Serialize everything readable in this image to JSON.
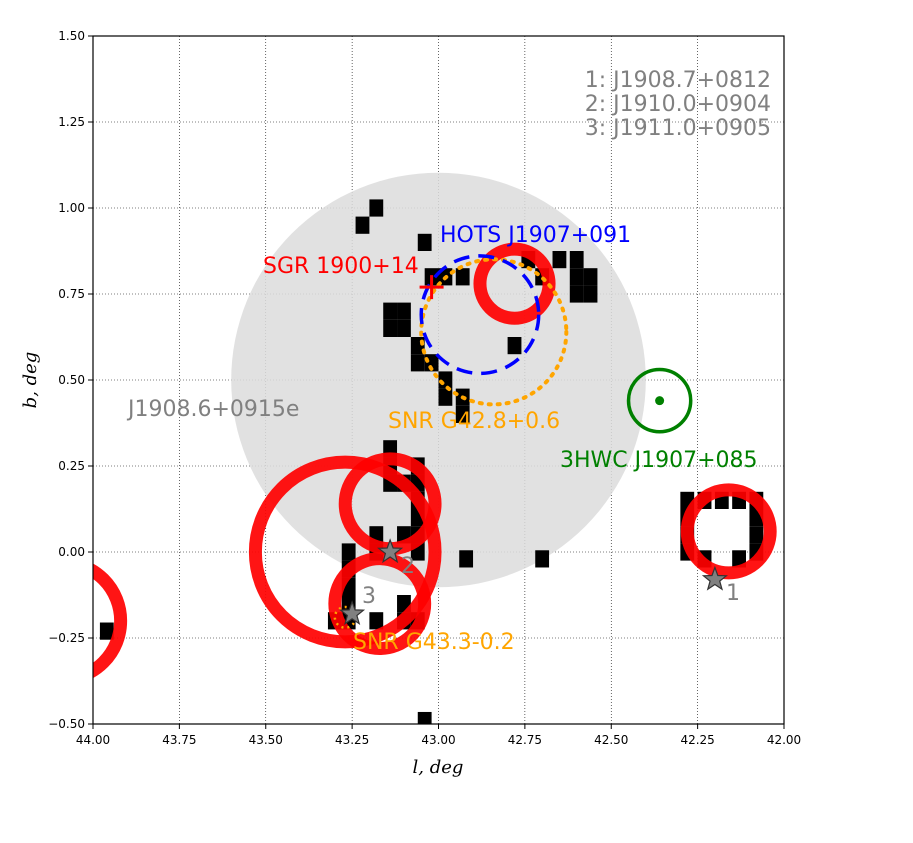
{
  "chart_data": {
    "type": "scatter",
    "xlabel": "l, deg",
    "ylabel": "b, deg",
    "xlim": [
      44.0,
      42.0
    ],
    "ylim": [
      -0.5,
      1.5
    ],
    "x_ticks": [
      44.0,
      43.75,
      43.5,
      43.25,
      43.0,
      42.75,
      42.5,
      42.25,
      42.0
    ],
    "x_tick_labels": [
      "44.00",
      "43.75",
      "43.50",
      "43.25",
      "43.00",
      "42.75",
      "42.50",
      "42.25",
      "42.00"
    ],
    "y_ticks": [
      -0.5,
      -0.25,
      0.0,
      0.25,
      0.5,
      0.75,
      1.0,
      1.25,
      1.5
    ],
    "y_tick_labels": [
      "−0.50",
      "−0.25",
      "0.00",
      "0.25",
      "0.50",
      "0.75",
      "1.00",
      "1.25",
      "1.50"
    ],
    "grid": true,
    "colors": {
      "red": "#ff0000",
      "blue": "#0000ff",
      "orange": "#ffa500",
      "green": "#008000",
      "gray": "#808080",
      "extended": "#dcdcdc"
    },
    "key_lines": [
      "1: J1908.7+0812",
      "2: J1910.0+0904",
      "3: J1911.0+0905"
    ],
    "extended_source": {
      "label": "J1908.6+0915e",
      "l": 43.0,
      "b": 0.5,
      "r": 0.6
    },
    "hots": {
      "label": "HOTS J1907+091",
      "l": 42.88,
      "b": 0.69,
      "r": 0.17
    },
    "snr_g42": {
      "label": "SNR G42.8+0.6",
      "l": 42.84,
      "b": 0.64,
      "r": 0.21
    },
    "snr_g43": {
      "label": "SNR G43.3-0.2",
      "l": 43.27,
      "b": -0.19,
      "r": 0.03
    },
    "sgr": {
      "label": "SGR 1900+14",
      "l": 43.02,
      "b": 0.77
    },
    "hawc": {
      "label": "3HWC J1907+085",
      "l": 42.36,
      "b": 0.44,
      "r": 0.09
    },
    "stars": [
      {
        "label": "1",
        "l": 42.2,
        "b": -0.08
      },
      {
        "label": "2",
        "l": 43.14,
        "b": 0.0
      },
      {
        "label": "3",
        "l": 43.25,
        "b": -0.18
      }
    ],
    "red_circles": [
      {
        "l": 42.78,
        "b": 0.78,
        "r": 0.1
      },
      {
        "l": 43.27,
        "b": 0.0,
        "r": 0.26
      },
      {
        "l": 43.14,
        "b": 0.14,
        "r": 0.13
      },
      {
        "l": 43.17,
        "b": -0.15,
        "r": 0.13
      },
      {
        "l": 42.16,
        "b": 0.06,
        "r": 0.12
      },
      {
        "l": 44.09,
        "b": -0.2,
        "r": 0.17
      }
    ],
    "pixels": [
      [
        43.18,
        1.0
      ],
      [
        43.22,
        0.95
      ],
      [
        43.04,
        0.9
      ],
      [
        42.98,
        0.8
      ],
      [
        43.02,
        0.8
      ],
      [
        42.93,
        0.8
      ],
      [
        42.74,
        0.85
      ],
      [
        42.6,
        0.85
      ],
      [
        42.65,
        0.85
      ],
      [
        42.6,
        0.8
      ],
      [
        42.56,
        0.8
      ],
      [
        42.56,
        0.75
      ],
      [
        42.6,
        0.75
      ],
      [
        42.7,
        0.8
      ],
      [
        43.14,
        0.7
      ],
      [
        43.1,
        0.7
      ],
      [
        43.14,
        0.65
      ],
      [
        43.1,
        0.65
      ],
      [
        43.06,
        0.6
      ],
      [
        43.06,
        0.55
      ],
      [
        43.02,
        0.55
      ],
      [
        42.98,
        0.5
      ],
      [
        42.98,
        0.45
      ],
      [
        42.93,
        0.45
      ],
      [
        42.93,
        0.4
      ],
      [
        42.78,
        0.6
      ],
      [
        43.14,
        0.3
      ],
      [
        43.14,
        0.25
      ],
      [
        43.06,
        0.25
      ],
      [
        43.06,
        0.2
      ],
      [
        43.1,
        0.2
      ],
      [
        43.14,
        0.2
      ],
      [
        43.06,
        0.15
      ],
      [
        43.06,
        0.1
      ],
      [
        43.06,
        0.05
      ],
      [
        43.06,
        0.0
      ],
      [
        43.1,
        0.05
      ],
      [
        43.18,
        0.05
      ],
      [
        43.18,
        0.0
      ],
      [
        43.26,
        0.0
      ],
      [
        43.26,
        -0.05
      ],
      [
        43.26,
        -0.1
      ],
      [
        43.26,
        -0.15
      ],
      [
        43.26,
        -0.2
      ],
      [
        43.3,
        -0.2
      ],
      [
        43.18,
        -0.2
      ],
      [
        43.1,
        -0.2
      ],
      [
        43.1,
        -0.15
      ],
      [
        43.06,
        -0.2
      ],
      [
        42.92,
        -0.02
      ],
      [
        42.7,
        -0.02
      ],
      [
        43.04,
        -0.49
      ],
      [
        42.28,
        0.15
      ],
      [
        42.23,
        0.15
      ],
      [
        42.18,
        0.15
      ],
      [
        42.13,
        0.15
      ],
      [
        42.08,
        0.15
      ],
      [
        42.28,
        0.1
      ],
      [
        42.28,
        0.05
      ],
      [
        42.28,
        0.0
      ],
      [
        42.23,
        -0.02
      ],
      [
        42.08,
        0.1
      ],
      [
        42.08,
        0.05
      ],
      [
        42.08,
        0.0
      ],
      [
        42.13,
        -0.02
      ],
      [
        43.96,
        -0.23
      ]
    ]
  }
}
